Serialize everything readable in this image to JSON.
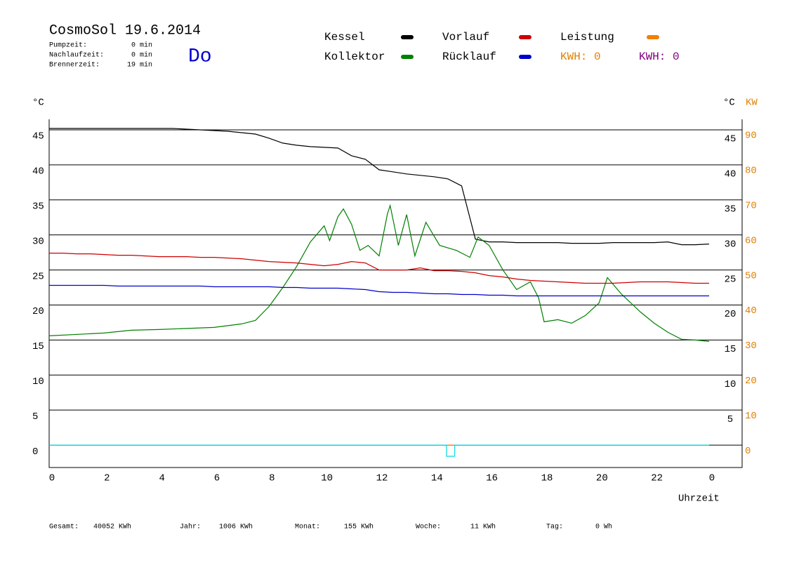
{
  "header": {
    "title": "CosmoSol 19.6.2014",
    "day": "Do",
    "stats": [
      {
        "label": "Pumpzeit:",
        "value": "0 min"
      },
      {
        "label": "Nachlaufzeit:",
        "value": "0 min"
      },
      {
        "label": "Brennerzeit:",
        "value": "19 min"
      }
    ],
    "kwh": [
      {
        "text": "KWH: 0",
        "color": "#e08000"
      },
      {
        "text": "KWH: 0",
        "color": "#800080"
      }
    ]
  },
  "chart_data": {
    "type": "line",
    "y_label": "°C",
    "y2_labels": [
      {
        "text": "°C",
        "color": "#000000"
      },
      {
        "text": "KW",
        "color": "#e08000"
      }
    ],
    "x_label": "Uhrzeit",
    "xlim": [
      0,
      24
    ],
    "xticks": [
      0,
      2,
      4,
      6,
      8,
      10,
      12,
      14,
      16,
      18,
      20,
      22,
      {
        "value": 24,
        "label": "0"
      }
    ],
    "ylim": [
      -3.2,
      46.5
    ],
    "yticks": [
      0,
      5,
      10,
      15,
      20,
      25,
      30,
      35,
      40,
      45
    ],
    "y2lim": [
      -6.4,
      93
    ],
    "y2ticks": [
      0,
      10,
      20,
      30,
      40,
      50,
      60,
      70,
      80,
      90
    ],
    "grid": true,
    "x": [
      0,
      0.5,
      1,
      1.5,
      2,
      2.5,
      3,
      3.5,
      4,
      4.5,
      5,
      5.5,
      6,
      6.5,
      7,
      7.5,
      8,
      8.5,
      9,
      9.5,
      10,
      10.5,
      11,
      11.5,
      12,
      12.5,
      13,
      13.5,
      14,
      14.5,
      15,
      15.5,
      16,
      16.5,
      17,
      17.5,
      18,
      18.5,
      19,
      19.5,
      20,
      20.5,
      21,
      21.5,
      22,
      22.5,
      23,
      23.5,
      24
    ],
    "series": [
      {
        "name": "Kessel",
        "color": "#000000",
        "values": [
          45.2,
          45.2,
          45.2,
          45.2,
          45.2,
          45.2,
          45.2,
          45.2,
          45.2,
          45.2,
          45.1,
          45.0,
          44.9,
          44.8,
          44.6,
          44.4,
          43.8,
          43.1,
          42.8,
          42.6,
          42.5,
          42.4,
          41.3,
          40.8,
          39.3,
          39.0,
          38.7,
          38.5,
          38.3,
          38.0,
          37.0,
          29.4,
          29.0,
          29.0,
          28.9,
          28.9,
          28.9,
          28.9,
          28.8,
          28.8,
          28.8,
          28.9,
          28.9,
          28.9,
          28.9,
          29.0,
          28.6,
          28.6,
          28.7
        ]
      },
      {
        "name": "Kollektor",
        "color": "#008000",
        "x": [
          0,
          2,
          3,
          4,
          6,
          7,
          7.5,
          8,
          8.5,
          9,
          9.5,
          10,
          10.2,
          10.5,
          10.7,
          11,
          11.3,
          11.6,
          12,
          12.3,
          12.4,
          12.7,
          13,
          13.3,
          13.7,
          14.2,
          14.8,
          15.3,
          15.6,
          16,
          16.5,
          17,
          17.5,
          17.8,
          18,
          18.5,
          19,
          19.5,
          20,
          20.3,
          20.8,
          21.5,
          22,
          22.5,
          23,
          23.5,
          24
        ],
        "values": [
          15.6,
          16.0,
          16.4,
          16.5,
          16.8,
          17.3,
          17.8,
          19.8,
          22.5,
          25.5,
          29.0,
          31.3,
          29.2,
          32.6,
          33.7,
          31.5,
          27.8,
          28.5,
          27.0,
          33.0,
          34.2,
          28.5,
          32.9,
          27.0,
          31.8,
          28.5,
          27.8,
          26.8,
          29.7,
          28.5,
          25.0,
          22.2,
          23.3,
          21.0,
          17.6,
          17.9,
          17.4,
          18.5,
          20.3,
          23.9,
          21.6,
          19.0,
          17.4,
          16.1,
          15.1,
          15.0,
          14.8
        ]
      },
      {
        "name": "Vorlauf",
        "color": "#cc0000",
        "values": [
          27.4,
          27.4,
          27.3,
          27.3,
          27.2,
          27.1,
          27.1,
          27.0,
          26.9,
          26.9,
          26.9,
          26.8,
          26.8,
          26.7,
          26.6,
          26.4,
          26.2,
          26.1,
          26.0,
          25.8,
          25.6,
          25.8,
          26.2,
          26.0,
          25.0,
          25.0,
          25.0,
          25.3,
          24.9,
          24.9,
          24.8,
          24.6,
          24.2,
          24.0,
          23.7,
          23.5,
          23.4,
          23.3,
          23.2,
          23.1,
          23.1,
          23.1,
          23.2,
          23.3,
          23.3,
          23.3,
          23.2,
          23.1,
          23.1
        ]
      },
      {
        "name": "Rücklauf",
        "color": "#0000cc",
        "values": [
          22.8,
          22.8,
          22.8,
          22.8,
          22.8,
          22.7,
          22.7,
          22.7,
          22.7,
          22.7,
          22.7,
          22.7,
          22.6,
          22.6,
          22.6,
          22.6,
          22.6,
          22.5,
          22.5,
          22.4,
          22.4,
          22.4,
          22.3,
          22.2,
          21.9,
          21.8,
          21.8,
          21.7,
          21.6,
          21.6,
          21.5,
          21.5,
          21.4,
          21.4,
          21.3,
          21.3,
          21.3,
          21.3,
          21.3,
          21.3,
          21.3,
          21.3,
          21.3,
          21.3,
          21.3,
          21.3,
          21.3,
          21.3,
          21.3
        ]
      },
      {
        "name": "Leistung",
        "color": "#f08000",
        "axis": "y2",
        "values": [
          0,
          0,
          0,
          0,
          0,
          0,
          0,
          0,
          0,
          0,
          0,
          0,
          0,
          0,
          0,
          0,
          0,
          0,
          0,
          0,
          0,
          0,
          0,
          0,
          0,
          0,
          0,
          0,
          0,
          0,
          0,
          0,
          0,
          0,
          0,
          0,
          0,
          0,
          0,
          0,
          0,
          0,
          0,
          0,
          0,
          0,
          0,
          0,
          0
        ]
      },
      {
        "color": "#00d8e0",
        "x": [
          0,
          14.45,
          14.45,
          14.75,
          14.75,
          24
        ],
        "values": [
          0,
          0,
          -1.6,
          -1.6,
          0,
          0
        ]
      }
    ]
  },
  "footer": {
    "totals": [
      {
        "label": "Gesamt:",
        "value": "40052 KWh"
      },
      {
        "label": "Jahr:",
        "value": "1006 KWh"
      },
      {
        "label": "Monat:",
        "value": "155 KWh"
      },
      {
        "label": "Woche:",
        "value": "11 KWh"
      },
      {
        "label": "Tag:",
        "value": "0 Wh"
      }
    ]
  }
}
